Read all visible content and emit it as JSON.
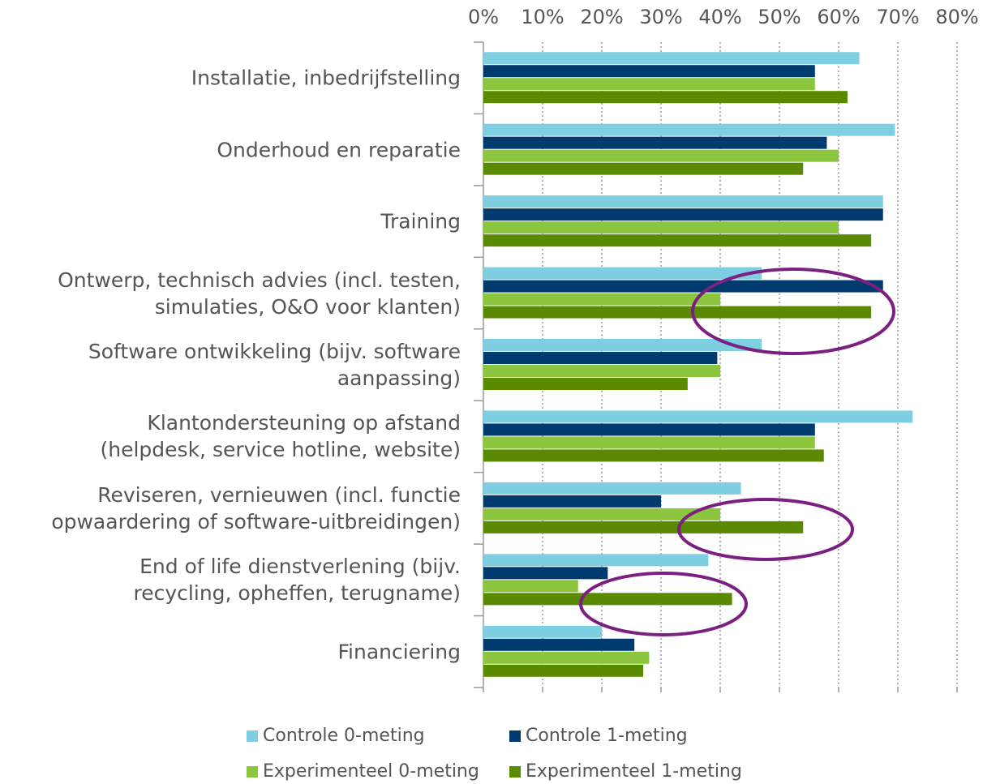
{
  "chart_data": {
    "type": "hbar",
    "categories": [
      "Installatie, inbedrijfstelling",
      "Onderhoud en reparatie",
      "Training",
      "Ontwerp, technisch advies (incl. testen,\nsimulaties, O&O voor klanten)",
      "Software ontwikkeling (bijv. software\naanpassing)",
      "Klantondersteuning op afstand\n(helpdesk, service hotline, website)",
      "Reviseren, vernieuwen (incl. functie\nopwaardering of software-uitbreidingen)",
      "End of life dienstverlening (bijv.\nrecycling, opheffen, terugname)",
      "Financiering"
    ],
    "series": [
      {
        "name": "Controle 0-meting",
        "color": "#7ecfe1",
        "values": [
          63.5,
          69.5,
          67.5,
          47,
          47,
          72.5,
          43.5,
          38,
          20
        ]
      },
      {
        "name": "Controle 1-meting",
        "color": "#003b6f",
        "values": [
          56,
          58,
          67.5,
          67.5,
          39.5,
          56,
          30,
          21,
          25.5
        ]
      },
      {
        "name": "Experimenteel 0-meting",
        "color": "#8cc63f",
        "values": [
          56,
          60,
          60,
          40,
          40,
          56,
          40,
          16,
          28
        ]
      },
      {
        "name": "Experimenteel 1-meting",
        "color": "#5a8a00",
        "values": [
          61.5,
          54,
          65.5,
          65.5,
          34.5,
          57.5,
          54,
          42,
          27
        ]
      }
    ],
    "xlim": [
      0,
      80
    ],
    "xticks": [
      {
        "value": 0,
        "label": "0%"
      },
      {
        "value": 10,
        "label": "10%"
      },
      {
        "value": 20,
        "label": "20%"
      },
      {
        "value": 30,
        "label": "30%"
      },
      {
        "value": 40,
        "label": "40%"
      },
      {
        "value": 50,
        "label": "50%"
      },
      {
        "value": 60,
        "label": "60%"
      },
      {
        "value": 70,
        "label": "70%"
      },
      {
        "value": 80,
        "label": "80%"
      }
    ],
    "grid": true
  }
}
